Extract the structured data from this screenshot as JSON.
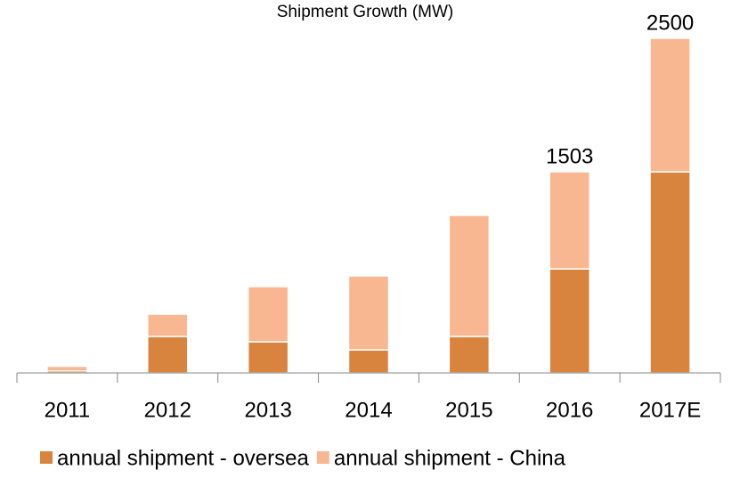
{
  "chart_data": {
    "type": "bar",
    "stacked": true,
    "title": "Shipment Growth (MW)",
    "categories": [
      "2011",
      "2012",
      "2013",
      "2014",
      "2015",
      "2016",
      "2017E"
    ],
    "series": [
      {
        "name": "annual shipment - oversea",
        "color": "#d9843e",
        "values": [
          15,
          273,
          233,
          173,
          273,
          778,
          1503
        ]
      },
      {
        "name": "annual shipment - China",
        "color": "#f9b791",
        "values": [
          35,
          166,
          412,
          552,
          904,
          725,
          997
        ]
      }
    ],
    "total_labels": [
      null,
      null,
      null,
      null,
      null,
      1503,
      2500
    ],
    "ylim": [
      0,
      2600
    ],
    "legend": "bottom"
  }
}
